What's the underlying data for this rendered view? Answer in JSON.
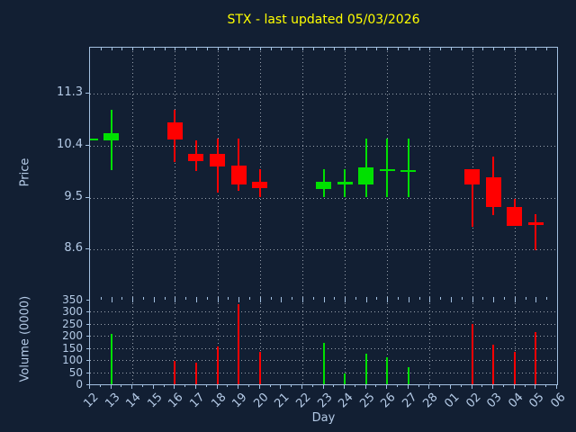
{
  "title": "STX - last updated 05/03/2026",
  "colors": {
    "background": "#121f33",
    "up": "#00e000",
    "down": "#ff0000",
    "title": "#ffff00",
    "axis_text": "#b4cae6",
    "spine": "#a3c0e0"
  },
  "chart_data": {
    "type": "candlestick+volume",
    "title": "STX - last updated 05/03/2026",
    "xlabel": "Day",
    "grid": "dotted, vertical every 2 days, legend none",
    "categories": [
      "12",
      "13",
      "14",
      "15",
      "16",
      "17",
      "18",
      "19",
      "20",
      "21",
      "22",
      "23",
      "24",
      "25",
      "26",
      "27",
      "28",
      "01",
      "02",
      "03",
      "04",
      "05",
      "06"
    ],
    "price_axis": {
      "label": "Price",
      "tick_labels": [
        "11.3",
        "10.4",
        "9.5",
        "8.6"
      ],
      "ticks": [
        11.3,
        10.4,
        9.5,
        8.6
      ],
      "ylim": [
        7.73,
        12.1
      ]
    },
    "volume_axis": {
      "label": "Volume (0000)",
      "tick_labels": [
        "350",
        "300",
        "250",
        "200",
        "150",
        "100",
        "50",
        "0"
      ],
      "ticks": [
        350,
        300,
        250,
        200,
        150,
        100,
        50,
        0
      ],
      "ylim": [
        0,
        350
      ]
    },
    "candles": [
      {
        "day": "12",
        "x_index": 0,
        "open": 10.52,
        "high": 10.52,
        "low": 10.52,
        "close": 10.52,
        "volume": null
      },
      {
        "day": "13",
        "x_index": 1,
        "open": 10.49,
        "high": 11.02,
        "low": 9.97,
        "close": 10.62,
        "volume": 210
      },
      {
        "day": "16",
        "x_index": 4,
        "open": 10.8,
        "high": 11.02,
        "low": 10.11,
        "close": 10.5,
        "volume": 95
      },
      {
        "day": "17",
        "x_index": 5,
        "open": 10.26,
        "high": 10.5,
        "low": 9.97,
        "close": 10.13,
        "volume": 90
      },
      {
        "day": "18",
        "x_index": 6,
        "open": 10.26,
        "high": 10.52,
        "low": 9.59,
        "close": 10.04,
        "volume": 155
      },
      {
        "day": "19",
        "x_index": 7,
        "open": 10.06,
        "high": 10.52,
        "low": 9.62,
        "close": 9.74,
        "volume": 330
      },
      {
        "day": "20",
        "x_index": 8,
        "open": 9.78,
        "high": 9.99,
        "low": 9.5,
        "close": 9.67,
        "volume": 135
      },
      {
        "day": "23",
        "x_index": 11,
        "open": 9.65,
        "high": 9.99,
        "low": 9.5,
        "close": 9.78,
        "volume": 170
      },
      {
        "day": "24",
        "x_index": 12,
        "open": 9.73,
        "high": 9.99,
        "low": 9.51,
        "close": 9.77,
        "volume": 45
      },
      {
        "day": "25",
        "x_index": 13,
        "open": 9.74,
        "high": 10.53,
        "low": 9.51,
        "close": 10.03,
        "volume": 125
      },
      {
        "day": "26",
        "x_index": 14,
        "open": 9.96,
        "high": 10.52,
        "low": 9.5,
        "close": 9.99,
        "volume": 110
      },
      {
        "day": "27",
        "x_index": 15,
        "open": 9.97,
        "high": 10.52,
        "low": 9.5,
        "close": 9.98,
        "volume": 70
      },
      {
        "day": "02",
        "x_index": 18,
        "open": 9.99,
        "high": 9.99,
        "low": 8.99,
        "close": 9.72,
        "volume": 250
      },
      {
        "day": "03",
        "x_index": 19,
        "open": 9.85,
        "high": 10.21,
        "low": 9.19,
        "close": 9.33,
        "volume": 165
      },
      {
        "day": "04",
        "x_index": 20,
        "open": 9.34,
        "high": 9.48,
        "low": 9.01,
        "close": 9.01,
        "volume": 135
      },
      {
        "day": "05",
        "x_index": 21,
        "open": 9.08,
        "high": 9.21,
        "low": 8.59,
        "close": 9.03,
        "volume": 215
      }
    ]
  }
}
